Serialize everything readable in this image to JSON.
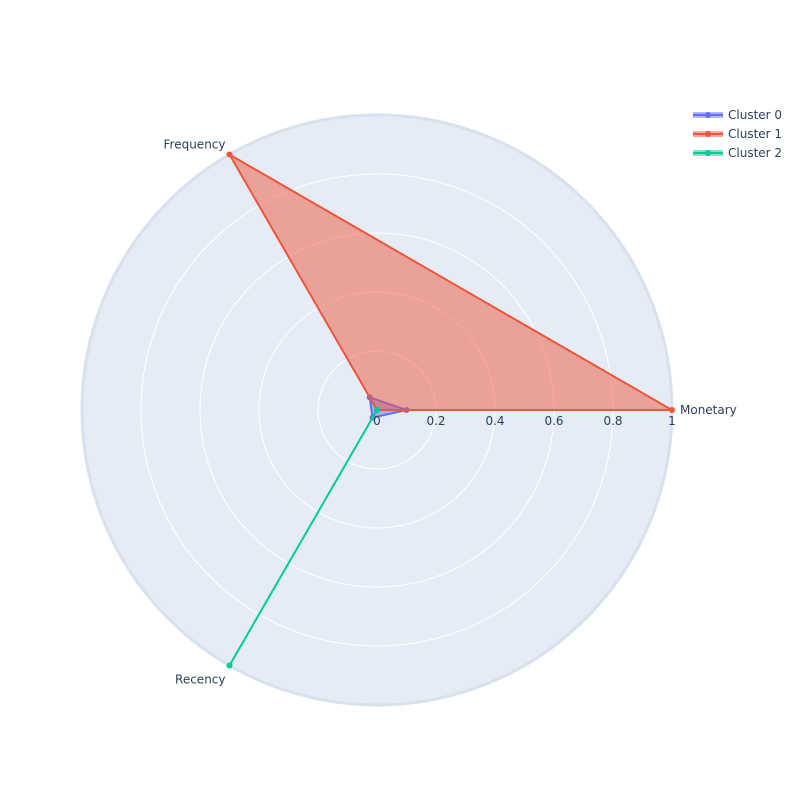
{
  "chart_data": {
    "type": "radar",
    "title": "",
    "categories": [
      "Monetary",
      "Frequency",
      "Recency"
    ],
    "radial_axis": {
      "range": [
        0,
        1
      ],
      "tick_labels": [
        "0",
        "0.2",
        "0.4",
        "0.6",
        "0.8",
        "1"
      ],
      "tick_values": [
        0,
        0.2,
        0.4,
        0.6,
        0.8,
        1
      ]
    },
    "grid": true,
    "legend_position": "top-right",
    "series": [
      {
        "name": "Cluster 0",
        "values": [
          0.1,
          0.05,
          0.03
        ],
        "color": "#636efa"
      },
      {
        "name": "Cluster 1",
        "values": [
          1.0,
          1.0,
          0.0
        ],
        "color": "#ef553b"
      },
      {
        "name": "Cluster 2",
        "values": [
          0.0,
          0.0,
          1.0
        ],
        "color": "#00cc96"
      }
    ],
    "background_color": "#e5ecf6",
    "grid_color": "#ffffff"
  }
}
